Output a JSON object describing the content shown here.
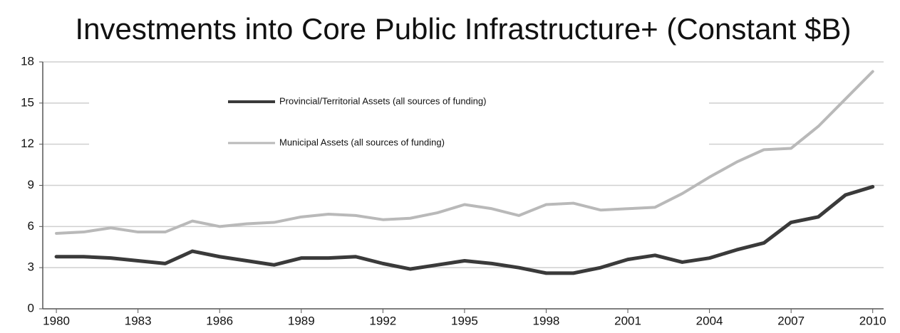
{
  "chart_data": {
    "type": "line",
    "title": "Investments into Core Public Infrastructure+ (Constant $B)",
    "x": [
      1980,
      1981,
      1982,
      1983,
      1984,
      1985,
      1986,
      1987,
      1988,
      1989,
      1990,
      1991,
      1992,
      1993,
      1994,
      1995,
      1996,
      1997,
      1998,
      1999,
      2000,
      2001,
      2002,
      2003,
      2004,
      2005,
      2006,
      2007,
      2008,
      2009,
      2010
    ],
    "series": [
      {
        "name": "Provincial/Territorial Assets (all sources of funding)",
        "color": "#3a3a3a",
        "values": [
          3.8,
          3.8,
          3.7,
          3.5,
          3.3,
          4.2,
          3.8,
          3.5,
          3.2,
          3.7,
          3.7,
          3.8,
          3.3,
          2.9,
          3.2,
          3.5,
          3.3,
          3.0,
          2.6,
          2.6,
          3.0,
          3.6,
          3.9,
          3.4,
          3.7,
          4.3,
          4.8,
          6.3,
          6.7,
          8.3,
          8.9
        ]
      },
      {
        "name": "Municipal Assets (all sources of funding)",
        "color": "#b9b9b9",
        "values": [
          5.5,
          5.6,
          5.9,
          5.6,
          5.6,
          6.4,
          6.0,
          6.2,
          6.3,
          6.7,
          6.9,
          6.8,
          6.5,
          6.6,
          7.0,
          7.6,
          7.3,
          6.8,
          7.6,
          7.7,
          7.2,
          7.3,
          7.4,
          8.4,
          9.6,
          10.7,
          11.6,
          11.7,
          13.3,
          15.3,
          17.3
        ]
      }
    ],
    "xlim": [
      1979.5,
      2010.4
    ],
    "xticks": [
      1980,
      1983,
      1986,
      1989,
      1992,
      1995,
      1998,
      2001,
      2004,
      2007,
      2010
    ],
    "ylim": [
      0,
      18
    ],
    "yticks": [
      0,
      3,
      6,
      9,
      12,
      15,
      18
    ],
    "grid": true
  }
}
